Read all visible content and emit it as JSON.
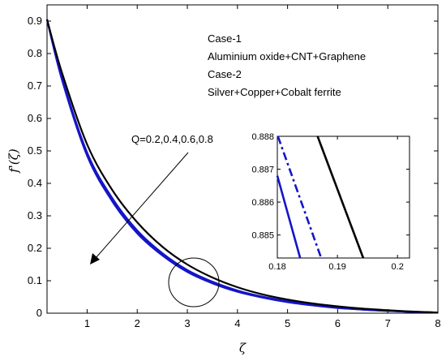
{
  "chart_data": {
    "type": "line",
    "xlabel": "ζ",
    "ylabel": "f'(ζ)",
    "xlim": [
      0.2,
      8
    ],
    "ylim": [
      0,
      0.95
    ],
    "xticks": [
      1,
      2,
      3,
      4,
      5,
      6,
      7,
      8
    ],
    "yticks": [
      0,
      0.1,
      0.2,
      0.3,
      0.4,
      0.5,
      0.6,
      0.7,
      0.8,
      0.9
    ],
    "xtick_labels": [
      "1",
      "2",
      "3",
      "4",
      "5",
      "6",
      "7",
      "8"
    ],
    "ytick_labels": [
      "0",
      "0.1",
      "0.2",
      "0.3",
      "0.4",
      "0.5",
      "0.6",
      "0.7",
      "0.8",
      "0.9"
    ],
    "legend_text": [
      "Case-1",
      "Aluminium oxide+CNT+Graphene",
      "Case-2",
      "Silver+Copper+Cobalt ferrite"
    ],
    "annotation": "Q=0.2,0.4,0.6,0.8",
    "colors": {
      "case1": "#000000",
      "case2": "#1515c8"
    },
    "series": [
      {
        "case": "Case-1",
        "style": "solid",
        "color": "#000000",
        "x": [
          0.2,
          0.5,
          1,
          1.5,
          2,
          2.5,
          3,
          3.5,
          4,
          4.5,
          5,
          5.5,
          6,
          6.5,
          7,
          7.5,
          8
        ],
        "y": [
          0.905,
          0.74,
          0.52,
          0.38,
          0.28,
          0.205,
          0.15,
          0.11,
          0.08,
          0.058,
          0.042,
          0.03,
          0.021,
          0.014,
          0.009,
          0.005,
          0.002
        ]
      },
      {
        "case": "Case-2",
        "style": "solid",
        "color": "#1515c8",
        "x": [
          0.2,
          0.5,
          1,
          1.5,
          2,
          2.5,
          3,
          3.5,
          4,
          4.5,
          5,
          5.5,
          6,
          6.5,
          7,
          7.5,
          8
        ],
        "y": [
          0.905,
          0.725,
          0.495,
          0.355,
          0.255,
          0.185,
          0.133,
          0.097,
          0.07,
          0.051,
          0.037,
          0.026,
          0.018,
          0.012,
          0.008,
          0.004,
          0.002
        ]
      },
      {
        "case": "Case-2",
        "style": "solid",
        "color": "#1515c8",
        "x": [
          0.2,
          0.5,
          1,
          1.5,
          2,
          2.5,
          3,
          3.5,
          4,
          4.5,
          5,
          5.5,
          6,
          6.5,
          7,
          7.5,
          8
        ],
        "y": [
          0.905,
          0.722,
          0.49,
          0.35,
          0.25,
          0.181,
          0.13,
          0.094,
          0.068,
          0.049,
          0.035,
          0.025,
          0.017,
          0.011,
          0.007,
          0.004,
          0.002
        ]
      },
      {
        "case": "Case-2",
        "style": "solid",
        "color": "#1515c8",
        "x": [
          0.2,
          0.5,
          1,
          1.5,
          2,
          2.5,
          3,
          3.5,
          4,
          4.5,
          5,
          5.5,
          6,
          6.5,
          7,
          7.5,
          8
        ],
        "y": [
          0.905,
          0.718,
          0.485,
          0.345,
          0.246,
          0.178,
          0.127,
          0.092,
          0.066,
          0.048,
          0.034,
          0.024,
          0.016,
          0.011,
          0.007,
          0.004,
          0.002
        ]
      }
    ],
    "inset": {
      "xlim": [
        0.18,
        0.202
      ],
      "ylim": [
        0.8843,
        0.888
      ],
      "xticks": [
        0.18,
        0.19,
        0.2
      ],
      "yticks": [
        0.885,
        0.886,
        0.887,
        0.888
      ],
      "xtick_labels": [
        "0.18",
        "0.19",
        "0.2"
      ],
      "ytick_labels": [
        "0.885",
        "0.886",
        "0.887",
        "0.888"
      ],
      "lines": [
        {
          "style": "solid",
          "color": "#000000",
          "x": [
            0.1867,
            0.1943
          ],
          "y": [
            0.888,
            0.8843
          ]
        },
        {
          "style": "dashdot",
          "color": "#1515c8",
          "x": [
            0.1801,
            0.1873
          ],
          "y": [
            0.888,
            0.8843
          ]
        },
        {
          "style": "solid",
          "color": "#1515c8",
          "x": [
            0.18,
            0.1838
          ],
          "y": [
            0.8868,
            0.8843
          ]
        }
      ]
    }
  }
}
